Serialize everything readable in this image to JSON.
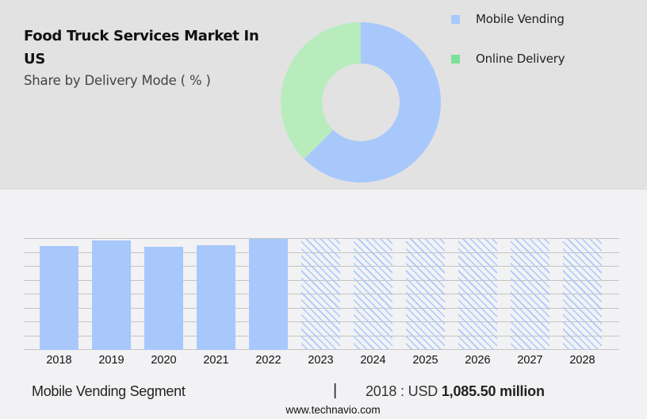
{
  "header": {
    "title": "Food Truck Services Market In US",
    "subtitle": "Share by Delivery Mode ( % )"
  },
  "legend": [
    {
      "label": "Mobile Vending",
      "color": "#a8c8fc"
    },
    {
      "label": "Online Delivery",
      "color": "#7ce09a"
    }
  ],
  "footer": {
    "segment": "Mobile Vending Segment",
    "separator": "|",
    "year_prefix": "2018 : USD",
    "value": "1,085.50 million",
    "url": "www.technavio.com"
  },
  "colors": {
    "mobile_vending": "#a8c8fc",
    "online_delivery_donut": "#b8ecbc",
    "online_delivery_legend": "#7ce09a",
    "top_panel_bg": "#e2e2e2",
    "bottom_panel_bg": "#f2f2f4"
  },
  "chart_data": [
    {
      "type": "pie",
      "subtype": "donut",
      "title": "Food Truck Services Market In US",
      "subtitle": "Share by Delivery Mode ( % )",
      "categories": [
        "Mobile Vending",
        "Online Delivery"
      ],
      "values": [
        62.5,
        37.5
      ],
      "legend_position": "right"
    },
    {
      "type": "bar",
      "title": "Mobile Vending Segment",
      "categories": [
        "2018",
        "2019",
        "2020",
        "2021",
        "2022",
        "2023",
        "2024",
        "2025",
        "2026",
        "2027",
        "2028"
      ],
      "series": [
        {
          "name": "Mobile Vending (USD million)",
          "values": [
            1085.5,
            1144,
            1077,
            1094,
            1160,
            null,
            null,
            null,
            null,
            null,
            null
          ]
        }
      ],
      "forecast_years": [
        "2023",
        "2024",
        "2025",
        "2026",
        "2027",
        "2028"
      ],
      "forecast_style": "hatched, full height (values not shown)",
      "annotation": "2018 : USD 1,085.50 million",
      "xlabel": "",
      "ylabel": "",
      "grid": true,
      "y_ticks_visible": false
    }
  ]
}
